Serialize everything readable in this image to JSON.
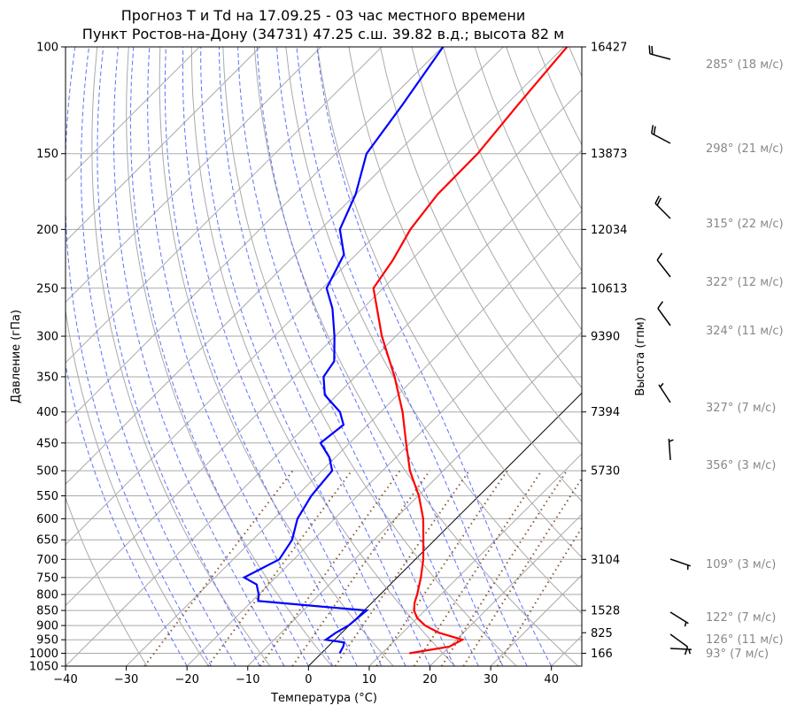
{
  "chart_data": {
    "type": "line",
    "title": "Прогноз T и Td на 17.09.25 - 03 час местного времени",
    "subtitle": "Пункт Ростов-на-Дону (34731) 47.25 с.ш. 39.82 в.д.; высота 82 м",
    "xlabel": "Температура (°C)",
    "ylabel": "Давление (гПа)",
    "ylabel_right": "Высота (гпм)",
    "xlim": [
      -40,
      45
    ],
    "ylim": [
      1050,
      100
    ],
    "xticks": [
      -40,
      -30,
      -20,
      -10,
      0,
      10,
      20,
      30,
      40
    ],
    "yticks": [
      100,
      150,
      200,
      250,
      300,
      350,
      400,
      450,
      500,
      550,
      600,
      650,
      700,
      750,
      800,
      850,
      900,
      950,
      1000,
      1050
    ],
    "height_ticks": [
      {
        "p": 100,
        "h": "16427"
      },
      {
        "p": 150,
        "h": "13873"
      },
      {
        "p": 200,
        "h": "12034"
      },
      {
        "p": 250,
        "h": "10613"
      },
      {
        "p": 300,
        "h": "9390"
      },
      {
        "p": 400,
        "h": "7394"
      },
      {
        "p": 500,
        "h": "5730"
      },
      {
        "p": 700,
        "h": "3104"
      },
      {
        "p": 850,
        "h": "1528"
      },
      {
        "p": 925,
        "h": "825"
      },
      {
        "p": 1000,
        "h": "166"
      }
    ],
    "series": [
      {
        "name": "T",
        "color": "#ff0000",
        "p": [
          1000,
          975,
          950,
          925,
          900,
          875,
          850,
          825,
          800,
          775,
          750,
          700,
          650,
          600,
          550,
          500,
          450,
          400,
          350,
          300,
          250,
          225,
          200,
          175,
          150,
          125,
          100
        ],
        "values": [
          14.5,
          20,
          21,
          16,
          12.5,
          10,
          8.2,
          7,
          6.1,
          5,
          3.9,
          1.3,
          -1.9,
          -5.4,
          -9.9,
          -15.5,
          -20.7,
          -26.4,
          -33.5,
          -42.3,
          -51.6,
          -53,
          -55.2,
          -56.5,
          -56.6,
          -58,
          -59.5
        ]
      },
      {
        "name": "Td",
        "color": "#0000ff",
        "p": [
          1000,
          975,
          960,
          950,
          925,
          900,
          850,
          840,
          820,
          800,
          770,
          750,
          700,
          650,
          600,
          550,
          500,
          475,
          450,
          420,
          400,
          375,
          350,
          330,
          300,
          270,
          250,
          220,
          200,
          175,
          150,
          125,
          100
        ],
        "values": [
          3,
          2.5,
          2,
          -1.5,
          -1,
          -0.1,
          0.4,
          -6,
          -19,
          -20,
          -22,
          -25.2,
          -22.4,
          -23.5,
          -26.1,
          -27.6,
          -28.3,
          -31,
          -34.8,
          -34,
          -36.7,
          -42,
          -45.2,
          -46,
          -50.1,
          -55,
          -59.3,
          -62,
          -66.8,
          -70,
          -74.9,
          -77,
          -79.9
        ]
      }
    ],
    "winds": [
      {
        "p": 100,
        "dir": 285,
        "spd": 18,
        "label": "285° (18 м/с)"
      },
      {
        "p": 150,
        "dir": 298,
        "spd": 21,
        "label": "298° (21 м/с)"
      },
      {
        "p": 200,
        "dir": 315,
        "spd": 22,
        "label": "315° (22 м/с)"
      },
      {
        "p": 250,
        "dir": 322,
        "spd": 12,
        "label": "322° (12 м/с)"
      },
      {
        "p": 300,
        "dir": 324,
        "spd": 11,
        "label": "324° (11 м/с)"
      },
      {
        "p": 400,
        "dir": 327,
        "spd": 7,
        "label": "327° (7 м/с)"
      },
      {
        "p": 500,
        "dir": 356,
        "spd": 3,
        "label": "356° (3 м/с)"
      },
      {
        "p": 700,
        "dir": 109,
        "spd": 3,
        "label": "109° (3 м/с)"
      },
      {
        "p": 850,
        "dir": 122,
        "spd": 7,
        "label": "122° (7 м/с)"
      },
      {
        "p": 925,
        "dir": 126,
        "spd": 11,
        "label": "126° (11 м/с)"
      },
      {
        "p": 1000,
        "dir": 93,
        "spd": 7,
        "label": " 93° (7 м/с)"
      }
    ]
  }
}
